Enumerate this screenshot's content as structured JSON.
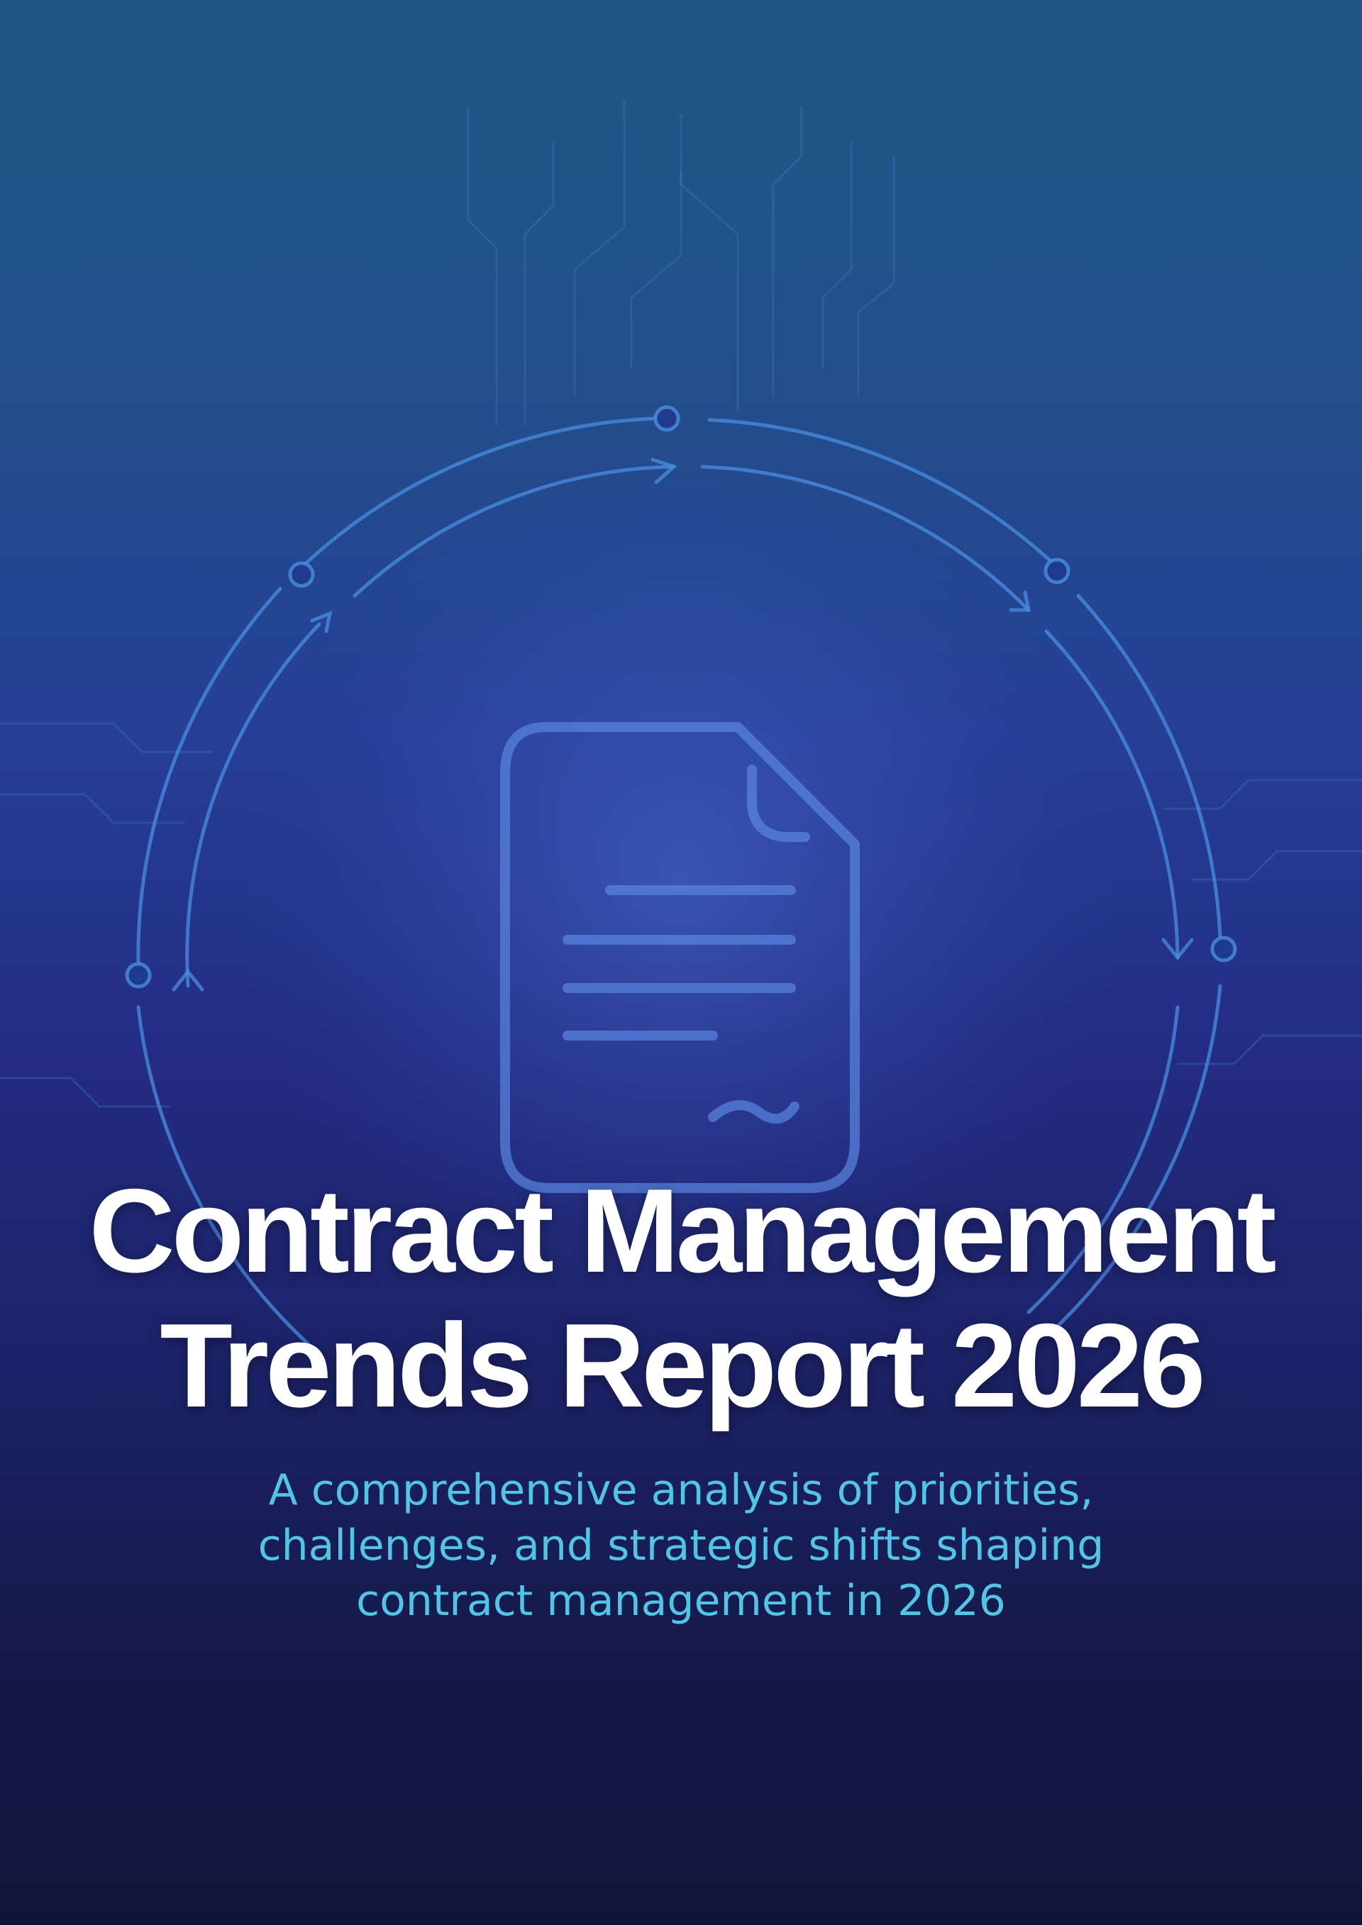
{
  "cover": {
    "title": [
      "Contract Management",
      "Trends Report 2026"
    ],
    "subtitle": [
      "A comprehensive analysis of priorities,",
      "challenges, and strategic shifts shaping",
      "contract management in 2026"
    ]
  }
}
